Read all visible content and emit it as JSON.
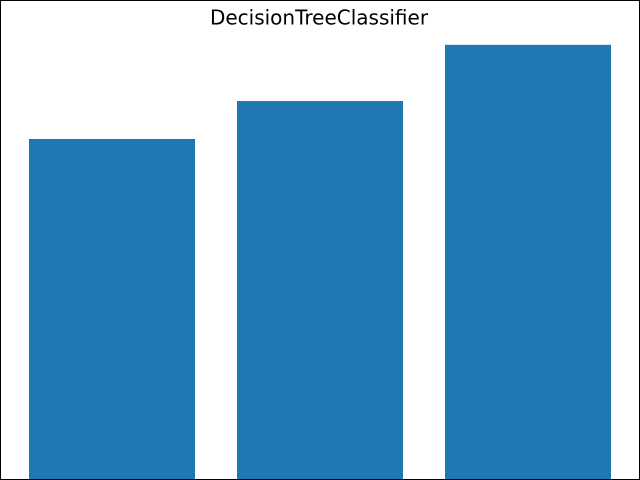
{
  "chart_data": {
    "type": "bar",
    "title": "DecisionTreeClassifier",
    "categories": [
      null,
      null,
      null
    ],
    "values": [
      0.746,
      0.829,
      0.952
    ],
    "color": "#1f77b4",
    "ylim": [
      0,
      1
    ],
    "grid": false
  }
}
